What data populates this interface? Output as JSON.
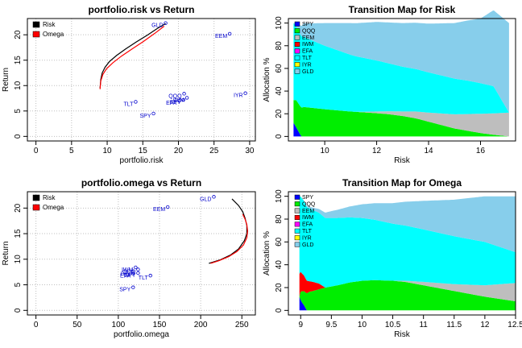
{
  "palette": {
    "frontier": "#000000",
    "omega": "#ff0000",
    "asset_label": "#0000cd",
    "grid": "#bfbfbf",
    "SPY": "#0000ff",
    "QQQ": "#00ee00",
    "EEM": "#bebebe",
    "IWM": "#ff0000",
    "EFA": "#ff00ff",
    "TLT": "#00ffff",
    "IYR": "#ffff00",
    "GLD": "#87ceeb"
  },
  "assets": [
    "SPY",
    "QQQ",
    "EEM",
    "IWM",
    "EFA",
    "TLT",
    "IYR",
    "GLD"
  ],
  "chart_data": [
    {
      "id": "risk_scatter",
      "type": "scatter",
      "title": "portfolio.risk vs Return",
      "xlabel": "portfolio.risk",
      "ylabel": "Return",
      "xlim": [
        -1.2,
        30.8
      ],
      "ylim": [
        -0.9,
        23.2
      ],
      "xticks": [
        0,
        5,
        10,
        15,
        20,
        25,
        30
      ],
      "yticks": [
        0,
        5,
        10,
        15,
        20
      ],
      "grid": true,
      "legend": {
        "position": "top-left",
        "entries": [
          "Risk",
          "Omega"
        ]
      },
      "points": [
        {
          "label": "GLD",
          "x": 18.2,
          "y": 22.3
        },
        {
          "label": "EEM",
          "x": 27.2,
          "y": 20.2
        },
        {
          "label": "IYR",
          "x": 29.4,
          "y": 8.5
        },
        {
          "label": "QQQ",
          "x": 20.8,
          "y": 8.4
        },
        {
          "label": "IWM",
          "x": 21.2,
          "y": 7.6
        },
        {
          "label": "EFA",
          "x": 20.1,
          "y": 7.0
        },
        {
          "label": "SPY",
          "x": 20.7,
          "y": 7.2
        },
        {
          "label": "TLT",
          "x": 14.0,
          "y": 6.8
        },
        {
          "label": "SPY",
          "x": 16.5,
          "y": 4.5
        }
      ],
      "series": [
        {
          "name": "Risk",
          "x": [
            9.0,
            9.1,
            9.3,
            9.7,
            10.3,
            11.3,
            12.6,
            14.1,
            15.7,
            17.1,
            18.2
          ],
          "y": [
            9.5,
            11.2,
            12.5,
            13.6,
            14.7,
            15.9,
            17.2,
            18.6,
            20.0,
            21.3,
            22.2
          ]
        },
        {
          "name": "Omega",
          "x": [
            9.0,
            9.1,
            9.4,
            9.9,
            10.8,
            12.0,
            13.5,
            15.1,
            16.7,
            18.0
          ],
          "y": [
            9.3,
            10.9,
            12.2,
            13.3,
            14.5,
            15.8,
            17.2,
            18.7,
            20.3,
            21.7
          ]
        }
      ]
    },
    {
      "id": "risk_transition",
      "type": "area",
      "title": "Transition Map for Risk",
      "xlabel": "Risk",
      "ylabel": "Allocation %",
      "xlim": [
        8.6,
        17.35
      ],
      "ylim": [
        -4,
        104
      ],
      "xticks": [
        10,
        12,
        14,
        16
      ],
      "yticks": [
        0,
        20,
        40,
        60,
        80,
        100
      ],
      "x_start": 8.8,
      "x_end": 17.1,
      "legend": {
        "position": "top-left",
        "entries": [
          "SPY",
          "QQQ",
          "EEM",
          "IWM",
          "EFA",
          "TLT",
          "IYR",
          "GLD"
        ]
      },
      "series": [
        {
          "name": "SPY",
          "x": [
            8.8,
            8.9,
            9.0,
            9.1,
            17.1
          ],
          "values": [
            12,
            8,
            4,
            0,
            0
          ]
        },
        {
          "name": "QQQ",
          "x": [
            8.8,
            8.9,
            9.2,
            10,
            11,
            12,
            12.5,
            13,
            13.5,
            14,
            14.5,
            15,
            15.5,
            16,
            16.5,
            17.1
          ],
          "values": [
            20,
            24,
            26,
            24,
            22,
            20.5,
            19.5,
            18,
            16,
            13,
            10,
            7,
            5,
            3,
            1.5,
            0
          ]
        },
        {
          "name": "EEM",
          "x": [
            8.8,
            11.2,
            12,
            13,
            14,
            15,
            16,
            17.1
          ],
          "values": [
            0,
            0,
            1.5,
            4,
            8,
            12.5,
            17,
            21
          ]
        },
        {
          "name": "IWM",
          "x": [
            8.8,
            17.1
          ],
          "values": [
            0,
            0
          ]
        },
        {
          "name": "EFA",
          "x": [
            8.8,
            17.1
          ],
          "values": [
            0,
            0
          ]
        },
        {
          "name": "TLT",
          "x": [
            8.8,
            8.9,
            9.2,
            9.5,
            10,
            10.5,
            11,
            11.5,
            12,
            12.5,
            13,
            13.5,
            14,
            14.5,
            15,
            15.5,
            16,
            16.5,
            17.1
          ],
          "values": [
            68,
            65,
            62,
            59.5,
            56,
            53,
            50,
            47.5,
            45,
            42,
            39.5,
            37.5,
            35.5,
            33.5,
            31.5,
            29.5,
            27,
            24,
            0
          ]
        },
        {
          "name": "IYR",
          "x": [
            8.8,
            17.1
          ],
          "values": [
            0,
            0
          ]
        },
        {
          "name": "GLD",
          "x": [
            8.8,
            8.9,
            9.2,
            10,
            11,
            12,
            13,
            14,
            15,
            16,
            17.1
          ],
          "values": [
            0,
            3,
            12,
            20,
            28,
            34,
            38.5,
            43,
            49,
            57,
            79
          ]
        }
      ]
    },
    {
      "id": "omega_scatter",
      "type": "scatter",
      "title": "portfolio.omega vs Return",
      "xlabel": "portfolio.omega",
      "ylabel": "Return",
      "xlim": [
        -10.4,
        266.4
      ],
      "ylim": [
        -0.9,
        23.2
      ],
      "xticks": [
        0,
        50,
        100,
        150,
        200,
        250
      ],
      "yticks": [
        0,
        5,
        10,
        15,
        20
      ],
      "grid": true,
      "legend": {
        "position": "top-left",
        "entries": [
          "Risk",
          "Omega"
        ]
      },
      "points": [
        {
          "label": "GLD",
          "x": 216,
          "y": 22.2
        },
        {
          "label": "EEM",
          "x": 160,
          "y": 20.2
        },
        {
          "label": "IWM",
          "x": 121,
          "y": 8.4
        },
        {
          "label": "QQQ",
          "x": 124,
          "y": 8.0
        },
        {
          "label": "IYR",
          "x": 117,
          "y": 7.6
        },
        {
          "label": "EFA",
          "x": 118,
          "y": 7.2
        },
        {
          "label": "SPY",
          "x": 124,
          "y": 7.3
        },
        {
          "label": "TLT",
          "x": 139,
          "y": 6.8
        },
        {
          "label": "SPY",
          "x": 118,
          "y": 4.5
        }
      ],
      "series": [
        {
          "name": "Risk",
          "x": [
            238,
            246,
            251,
            254,
            256,
            256,
            253,
            246,
            236,
            224,
            210
          ],
          "y": [
            21.8,
            20.5,
            19.3,
            18.0,
            16.6,
            15.0,
            13.6,
            12.0,
            10.8,
            9.9,
            9.2
          ]
        },
        {
          "name": "Omega",
          "x": [
            251,
            254,
            256,
            257,
            256,
            252,
            244,
            234,
            222,
            212
          ],
          "y": [
            18.8,
            17.8,
            16.8,
            15.5,
            14.2,
            12.8,
            11.5,
            10.5,
            9.7,
            9.2
          ]
        }
      ]
    },
    {
      "id": "omega_transition",
      "type": "area",
      "title": "Transition Map for Omega",
      "xlabel": "Risk",
      "ylabel": "Allocation %",
      "xlim": [
        8.8,
        12.5
      ],
      "ylim": [
        -4,
        104
      ],
      "xticks": [
        9.0,
        9.5,
        10.0,
        10.5,
        11.0,
        11.5,
        12.0,
        12.5
      ],
      "yticks": [
        0,
        20,
        40,
        60,
        80,
        100
      ],
      "x_start": 8.98,
      "x_end": 12.5,
      "legend": {
        "position": "top-left",
        "entries": [
          "SPY",
          "QQQ",
          "EEM",
          "IWM",
          "EFA",
          "TLT",
          "IYR",
          "GLD"
        ]
      },
      "series": [
        {
          "name": "SPY",
          "x": [
            8.98,
            9.0,
            9.02,
            9.05,
            9.08,
            9.1,
            12.5
          ],
          "values": [
            12,
            9,
            7,
            5,
            2,
            0,
            0
          ]
        },
        {
          "name": "QQQ",
          "x": [
            8.98,
            9.0,
            9.05,
            9.1,
            9.15,
            9.2,
            9.3,
            9.4,
            9.6,
            9.8,
            10.0,
            10.2,
            10.5,
            10.7,
            11.0,
            11.5,
            12.0,
            12.5
          ],
          "values": [
            0,
            8,
            12,
            15,
            16.5,
            17,
            18.5,
            20,
            22,
            24.5,
            26,
            26.5,
            26,
            25,
            22,
            17,
            12,
            8
          ]
        },
        {
          "name": "EEM",
          "x": [
            8.98,
            10.5,
            10.7,
            11.0,
            11.5,
            12.0,
            12.5
          ],
          "values": [
            0,
            0,
            1,
            3,
            6,
            10,
            16
          ]
        },
        {
          "name": "IWM",
          "x": [
            8.98,
            9.0,
            9.05,
            9.1,
            9.15,
            9.2,
            9.25,
            9.3,
            9.35,
            9.4,
            12.5
          ],
          "values": [
            20,
            17,
            14,
            11,
            9,
            8,
            6.5,
            5,
            2.5,
            0,
            0
          ]
        },
        {
          "name": "EFA",
          "x": [
            8.98,
            12.5
          ],
          "values": [
            0,
            0
          ]
        },
        {
          "name": "TLT",
          "x": [
            8.98,
            9.0,
            9.2,
            9.5,
            10.0,
            10.5,
            11.0,
            11.5,
            12.0,
            12.5
          ],
          "values": [
            68,
            66,
            63,
            60,
            55,
            50,
            46,
            42,
            38,
            27
          ]
        },
        {
          "name": "IYR",
          "x": [
            8.98,
            12.5
          ],
          "values": [
            0,
            0
          ]
        },
        {
          "name": "GLD",
          "x": [
            8.98,
            9.0,
            9.2,
            9.5,
            10.0,
            10.5,
            11.0,
            11.5,
            12.0,
            12.5
          ],
          "values": [
            0,
            0,
            2,
            6,
            12,
            18,
            25,
            32,
            40,
            49
          ]
        }
      ]
    }
  ]
}
